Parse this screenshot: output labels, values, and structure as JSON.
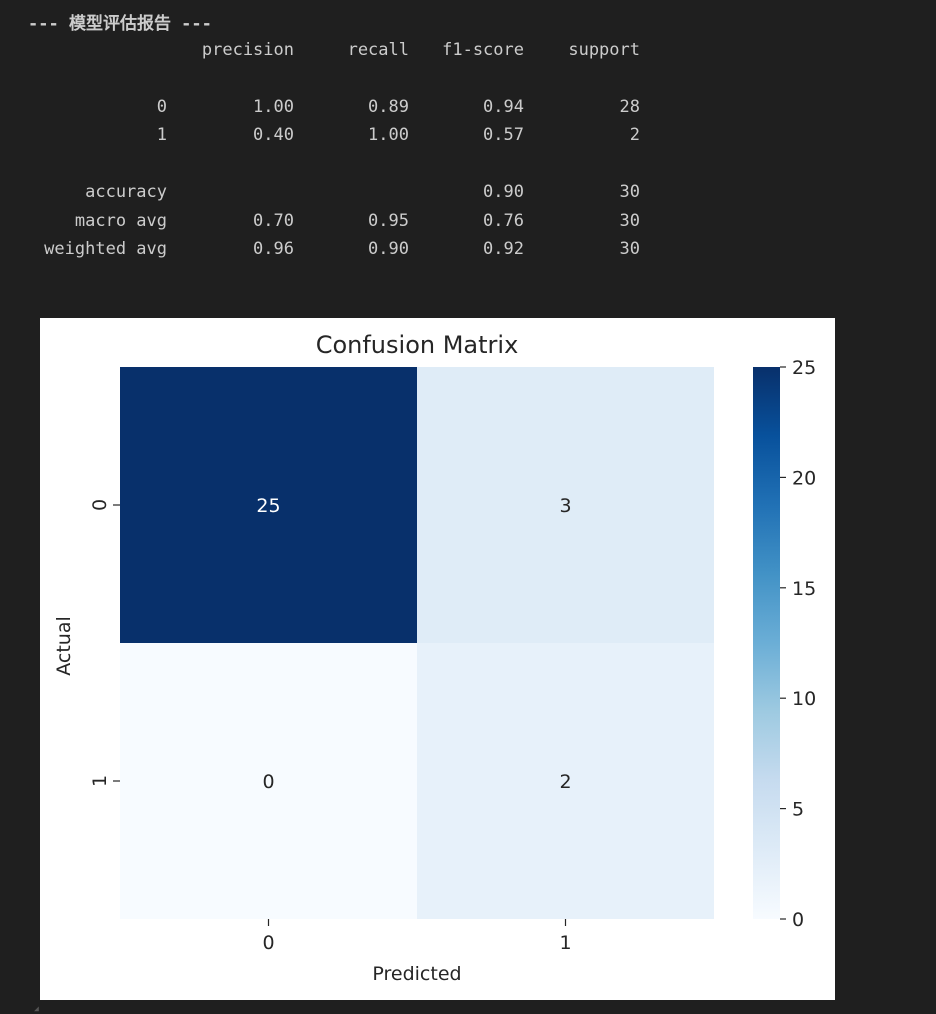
{
  "report": {
    "title": "--- 模型评估报告 ---",
    "columns": [
      "precision",
      "recall",
      "f1-score",
      "support"
    ],
    "class_rows": [
      {
        "label": "0",
        "values": [
          "1.00",
          "0.89",
          "0.94",
          "28"
        ]
      },
      {
        "label": "1",
        "values": [
          "0.40",
          "1.00",
          "0.57",
          "2"
        ]
      }
    ],
    "accuracy_row": {
      "label": "accuracy",
      "f1": "0.90",
      "support": "30"
    },
    "summary_rows": [
      {
        "label": "macro avg",
        "values": [
          "0.70",
          "0.95",
          "0.76",
          "30"
        ]
      },
      {
        "label": "weighted avg",
        "values": [
          "0.96",
          "0.90",
          "0.92",
          "30"
        ]
      }
    ]
  },
  "chart_data": {
    "type": "heatmap",
    "title": "Confusion Matrix",
    "xlabel": "Predicted",
    "ylabel": "Actual",
    "x_categories": [
      "0",
      "1"
    ],
    "y_categories": [
      "0",
      "1"
    ],
    "values": [
      [
        25,
        3
      ],
      [
        0,
        2
      ]
    ],
    "annotations": [
      [
        "25",
        "3"
      ],
      [
        "0",
        "2"
      ]
    ],
    "colormap": "Blues",
    "colorbar": {
      "min": 0,
      "max": 25,
      "ticks": [
        0,
        5,
        10,
        15,
        20,
        25
      ]
    },
    "colors": {
      "cell_25": "#08306b",
      "cell_3": "#deebf7",
      "cell_0": "#f7fbff",
      "cell_2": "#e3eef9",
      "text_dark_bg": "#ffffff",
      "text_light_bg": "#262626"
    }
  }
}
